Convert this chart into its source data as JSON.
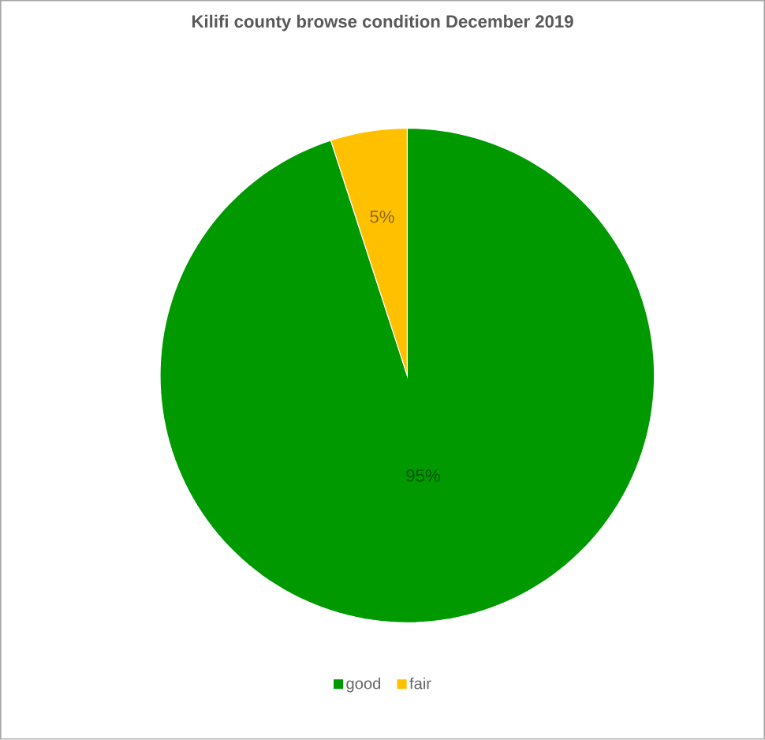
{
  "chart_data": {
    "type": "pie",
    "title": "Kilifi county browse condition December 2019",
    "categories": [
      "good",
      "fair"
    ],
    "values": [
      95,
      5
    ],
    "colors": [
      "#009900",
      "#ffc000"
    ],
    "value_labels": [
      "95%",
      "5%"
    ],
    "legend": "bottom"
  }
}
